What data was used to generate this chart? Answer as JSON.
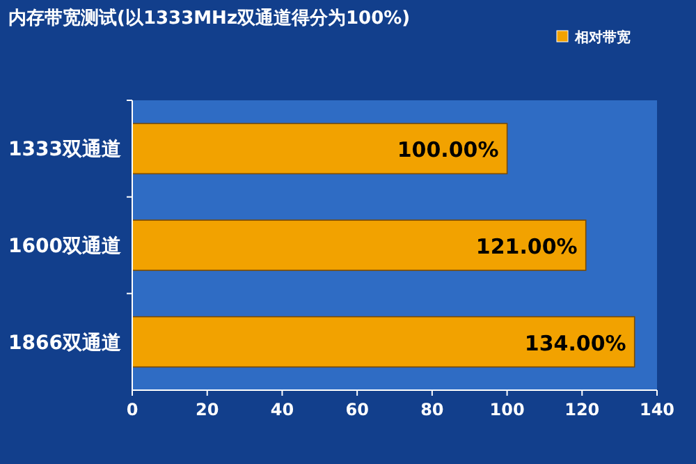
{
  "chart_data": {
    "type": "bar",
    "orientation": "horizontal",
    "title": "内存带宽测试(以1333MHz双通道得分为100%)",
    "categories": [
      "1333双通道",
      "1600双通道",
      "1866双通道"
    ],
    "series": [
      {
        "name": "相对带宽",
        "color": "#f2a200",
        "values": [
          100,
          121,
          134
        ],
        "value_labels": [
          "100.00%",
          "121.00%",
          "134.00%"
        ]
      }
    ],
    "xlim": [
      0,
      140
    ],
    "xticks": [
      0,
      20,
      40,
      60,
      80,
      100,
      120,
      140
    ],
    "legend": "top right"
  }
}
